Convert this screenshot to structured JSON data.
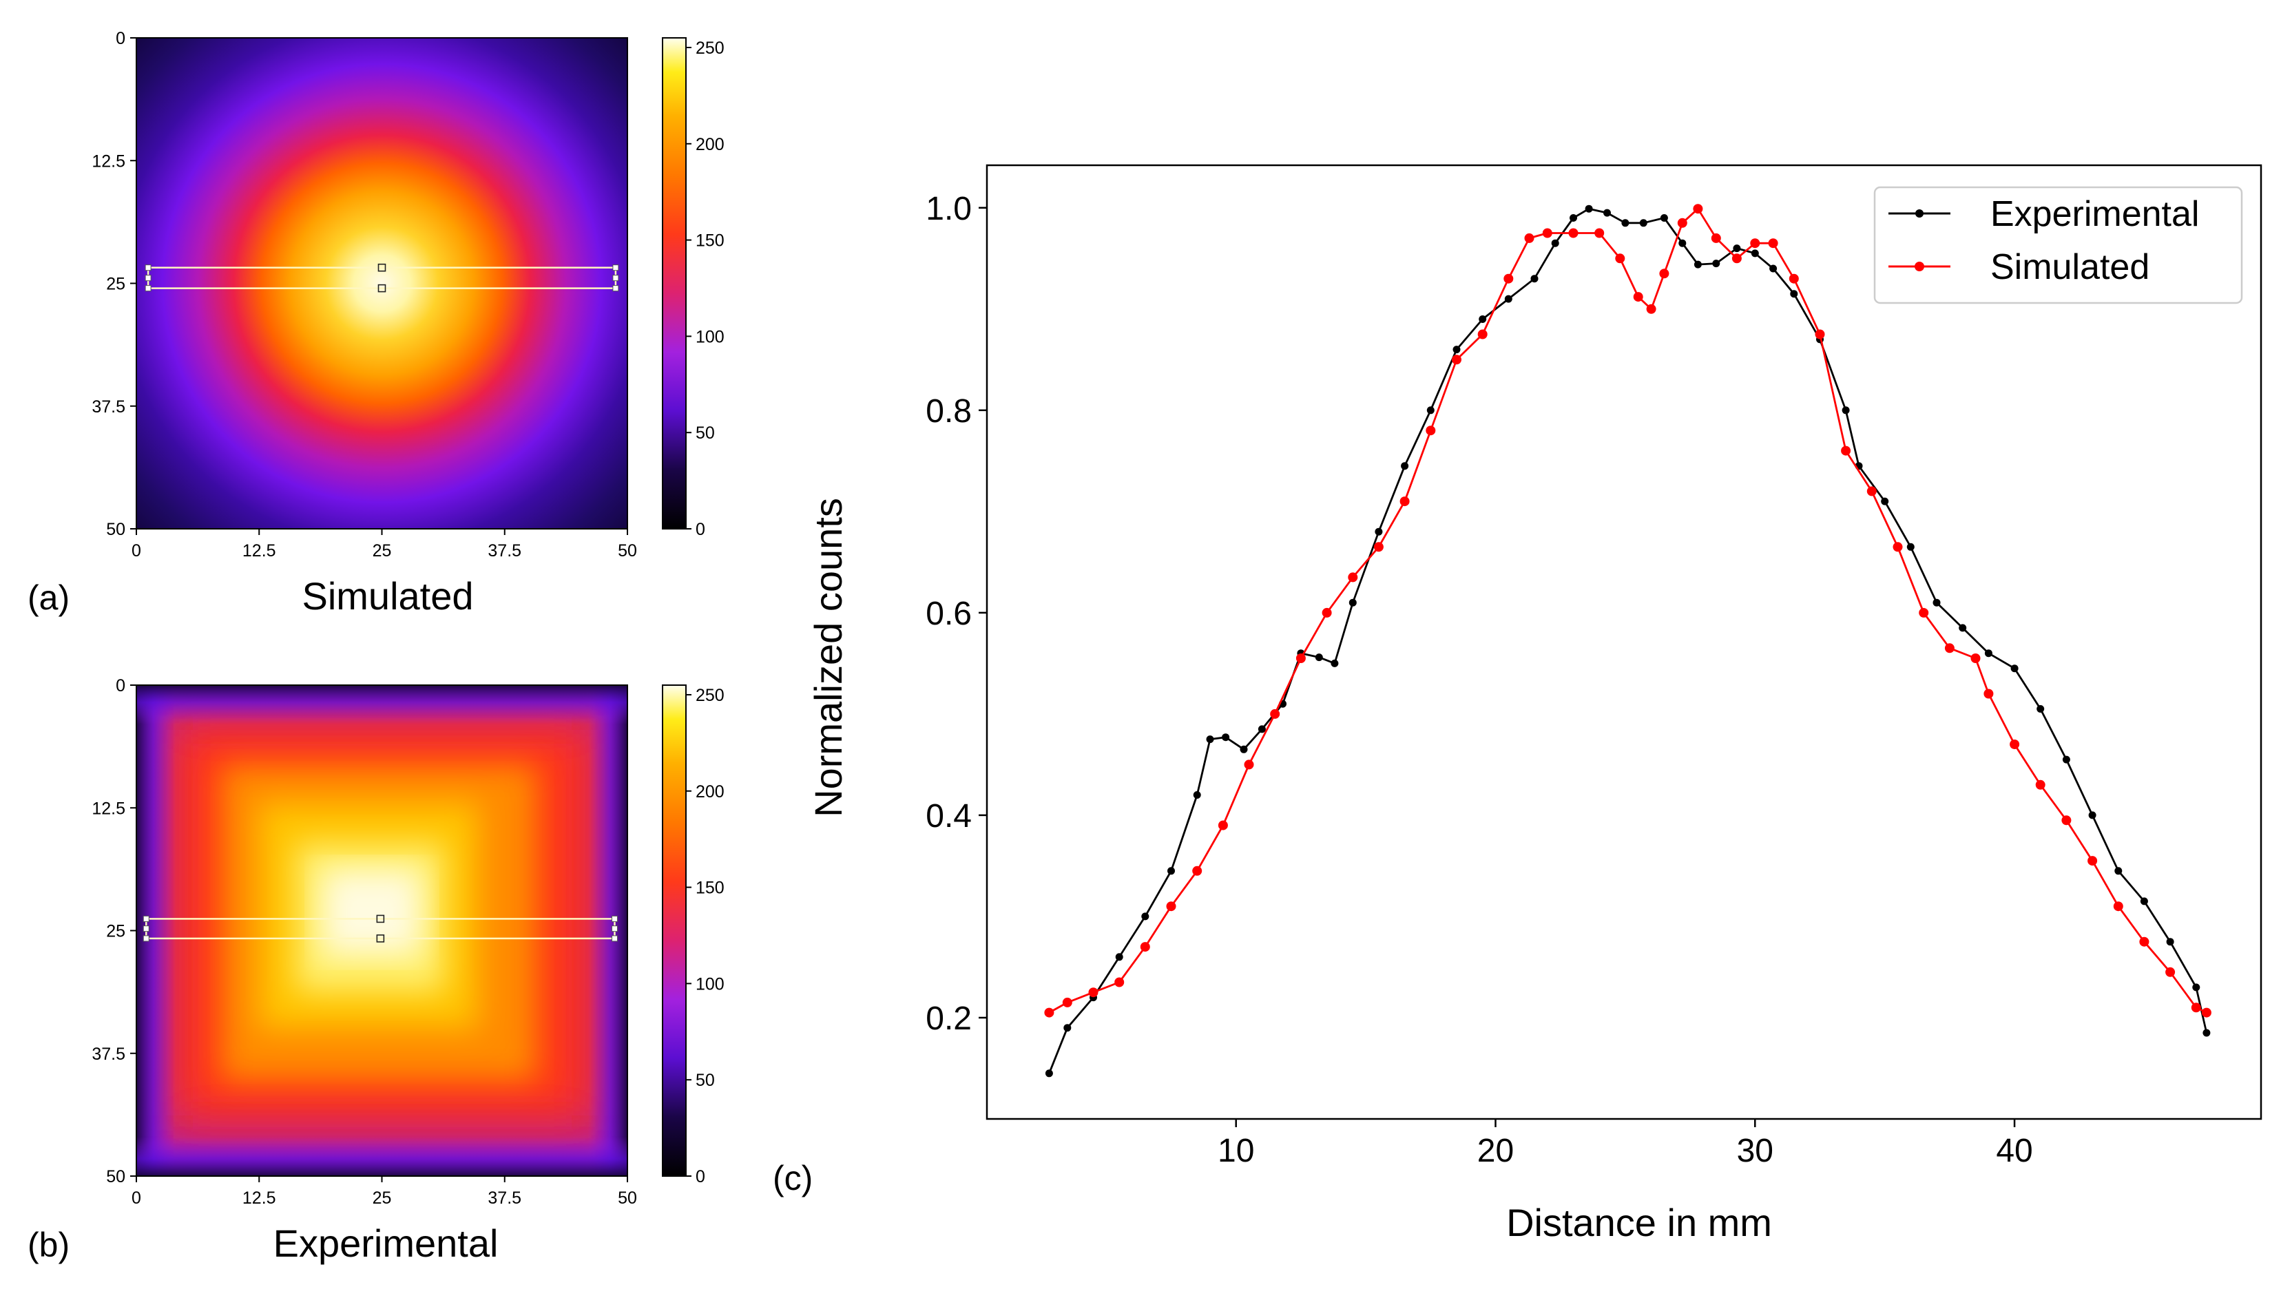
{
  "figure": {
    "panel_a": {
      "label": "(a)",
      "caption": "Simulated",
      "heatmap_type": "gaussian",
      "xticks": [
        "0",
        "12.5",
        "25",
        "37.5",
        "50"
      ],
      "yticks": [
        "0",
        "12.5",
        "25",
        "37.5",
        "50"
      ],
      "xlim": [
        0,
        50
      ],
      "ylim": [
        0,
        50
      ],
      "colorbar_ticks": [
        "0",
        "50",
        "100",
        "150",
        "200",
        "250"
      ],
      "colorbar_range": [
        0,
        255
      ],
      "roi_y_range": [
        23.4,
        25.5
      ],
      "roi_x_range": [
        1.2,
        48.8
      ],
      "colormap_name": "gnuplot"
    },
    "panel_b": {
      "label": "(b)",
      "caption": "Experimental",
      "heatmap_type": "square",
      "xticks": [
        "0",
        "12.5",
        "25",
        "37.5",
        "50"
      ],
      "yticks": [
        "0",
        "12.5",
        "25",
        "37.5",
        "50"
      ],
      "xlim": [
        0,
        50
      ],
      "ylim": [
        0,
        50
      ],
      "colorbar_ticks": [
        "0",
        "50",
        "100",
        "150",
        "200",
        "250"
      ],
      "colorbar_range": [
        0,
        255
      ],
      "roi_y_range": [
        23.8,
        25.8
      ],
      "roi_x_range": [
        1.0,
        48.7
      ],
      "colormap_name": "gnuplot"
    },
    "panel_c": {
      "label": "(c)"
    }
  },
  "chart_data": {
    "type": "line",
    "xlabel": "Distance in mm",
    "ylabel": "Normalized counts",
    "xlim": [
      0.4,
      49.5
    ],
    "ylim": [
      0.1,
      1.042
    ],
    "xticks": [
      10,
      20,
      30,
      40
    ],
    "yticks": [
      0.2,
      0.4,
      0.6,
      0.8,
      1.0
    ],
    "ytick_labels": [
      "0.2",
      "0.4",
      "0.6",
      "0.8",
      "1.0"
    ],
    "grid": false,
    "legend_position": "top-right",
    "series": [
      {
        "name": "Experimental",
        "color": "#000000",
        "points": [
          [
            2.8,
            0.145
          ],
          [
            3.5,
            0.19
          ],
          [
            4.5,
            0.22
          ],
          [
            5.5,
            0.26
          ],
          [
            6.5,
            0.3
          ],
          [
            7.5,
            0.345
          ],
          [
            8.5,
            0.42
          ],
          [
            9.0,
            0.475
          ],
          [
            9.6,
            0.477
          ],
          [
            10.3,
            0.465
          ],
          [
            11.0,
            0.485
          ],
          [
            11.8,
            0.51
          ],
          [
            12.5,
            0.56
          ],
          [
            13.2,
            0.556
          ],
          [
            13.8,
            0.55
          ],
          [
            14.5,
            0.61
          ],
          [
            15.5,
            0.68
          ],
          [
            16.5,
            0.745
          ],
          [
            17.5,
            0.8
          ],
          [
            18.5,
            0.86
          ],
          [
            19.5,
            0.89
          ],
          [
            20.5,
            0.91
          ],
          [
            21.5,
            0.93
          ],
          [
            22.3,
            0.965
          ],
          [
            23.0,
            0.99
          ],
          [
            23.6,
            0.999
          ],
          [
            24.3,
            0.995
          ],
          [
            25.0,
            0.985
          ],
          [
            25.7,
            0.985
          ],
          [
            26.5,
            0.99
          ],
          [
            27.2,
            0.965
          ],
          [
            27.8,
            0.944
          ],
          [
            28.5,
            0.945
          ],
          [
            29.3,
            0.96
          ],
          [
            30.0,
            0.955
          ],
          [
            30.7,
            0.94
          ],
          [
            31.5,
            0.915
          ],
          [
            32.5,
            0.87
          ],
          [
            33.5,
            0.8
          ],
          [
            34.0,
            0.745
          ],
          [
            35.0,
            0.71
          ],
          [
            36.0,
            0.665
          ],
          [
            37.0,
            0.61
          ],
          [
            38.0,
            0.585
          ],
          [
            39.0,
            0.56
          ],
          [
            40.0,
            0.545
          ],
          [
            41.0,
            0.505
          ],
          [
            42.0,
            0.455
          ],
          [
            43.0,
            0.4
          ],
          [
            44.0,
            0.345
          ],
          [
            45.0,
            0.315
          ],
          [
            46.0,
            0.275
          ],
          [
            47.0,
            0.23
          ],
          [
            47.4,
            0.185
          ]
        ]
      },
      {
        "name": "Simulated",
        "color": "#ff0000",
        "points": [
          [
            2.8,
            0.205
          ],
          [
            3.5,
            0.215
          ],
          [
            4.5,
            0.225
          ],
          [
            5.5,
            0.235
          ],
          [
            6.5,
            0.27
          ],
          [
            7.5,
            0.31
          ],
          [
            8.5,
            0.345
          ],
          [
            9.5,
            0.39
          ],
          [
            10.5,
            0.45
          ],
          [
            11.5,
            0.5
          ],
          [
            12.5,
            0.555
          ],
          [
            13.5,
            0.6
          ],
          [
            14.5,
            0.635
          ],
          [
            15.5,
            0.665
          ],
          [
            16.5,
            0.71
          ],
          [
            17.5,
            0.78
          ],
          [
            18.5,
            0.85
          ],
          [
            19.5,
            0.875
          ],
          [
            20.5,
            0.93
          ],
          [
            21.3,
            0.97
          ],
          [
            22.0,
            0.975
          ],
          [
            23.0,
            0.975
          ],
          [
            24.0,
            0.975
          ],
          [
            24.8,
            0.95
          ],
          [
            25.5,
            0.912
          ],
          [
            26.0,
            0.9
          ],
          [
            26.5,
            0.935
          ],
          [
            27.2,
            0.985
          ],
          [
            27.8,
            0.999
          ],
          [
            28.5,
            0.97
          ],
          [
            29.3,
            0.95
          ],
          [
            30.0,
            0.965
          ],
          [
            30.7,
            0.965
          ],
          [
            31.5,
            0.93
          ],
          [
            32.5,
            0.875
          ],
          [
            33.5,
            0.76
          ],
          [
            34.5,
            0.72
          ],
          [
            35.5,
            0.665
          ],
          [
            36.5,
            0.6
          ],
          [
            37.5,
            0.565
          ],
          [
            38.5,
            0.555
          ],
          [
            39.0,
            0.52
          ],
          [
            40.0,
            0.47
          ],
          [
            41.0,
            0.43
          ],
          [
            42.0,
            0.395
          ],
          [
            43.0,
            0.355
          ],
          [
            44.0,
            0.31
          ],
          [
            45.0,
            0.275
          ],
          [
            46.0,
            0.245
          ],
          [
            47.0,
            0.21
          ],
          [
            47.4,
            0.205
          ]
        ]
      }
    ]
  }
}
